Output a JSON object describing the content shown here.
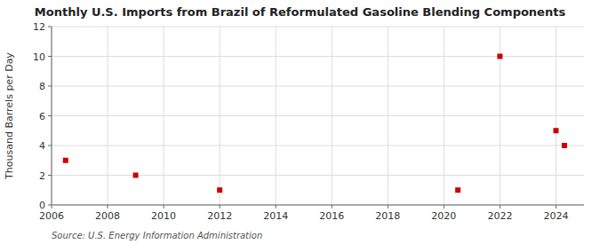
{
  "chart_data": {
    "type": "scatter",
    "title": "Monthly U.S. Imports from Brazil of Reformulated Gasoline Blending Components",
    "y_label": "Thousand Barrels per Day",
    "source": "Source: U.S. Energy Information Administration",
    "x": [
      2006.5,
      2009.0,
      2012.0,
      2020.5,
      2022.0,
      2024.0,
      2024.3
    ],
    "values": [
      3,
      2,
      1,
      1,
      10,
      5,
      4
    ],
    "color": "#cc0000",
    "marker": "square",
    "xlim": [
      2006,
      2025
    ],
    "ylim": [
      0,
      12
    ],
    "xticks": [
      2006,
      2008,
      2010,
      2012,
      2014,
      2016,
      2018,
      2020,
      2022,
      2024
    ],
    "yticks": [
      0,
      2,
      4,
      6,
      8,
      10,
      12
    ],
    "grid": true
  }
}
